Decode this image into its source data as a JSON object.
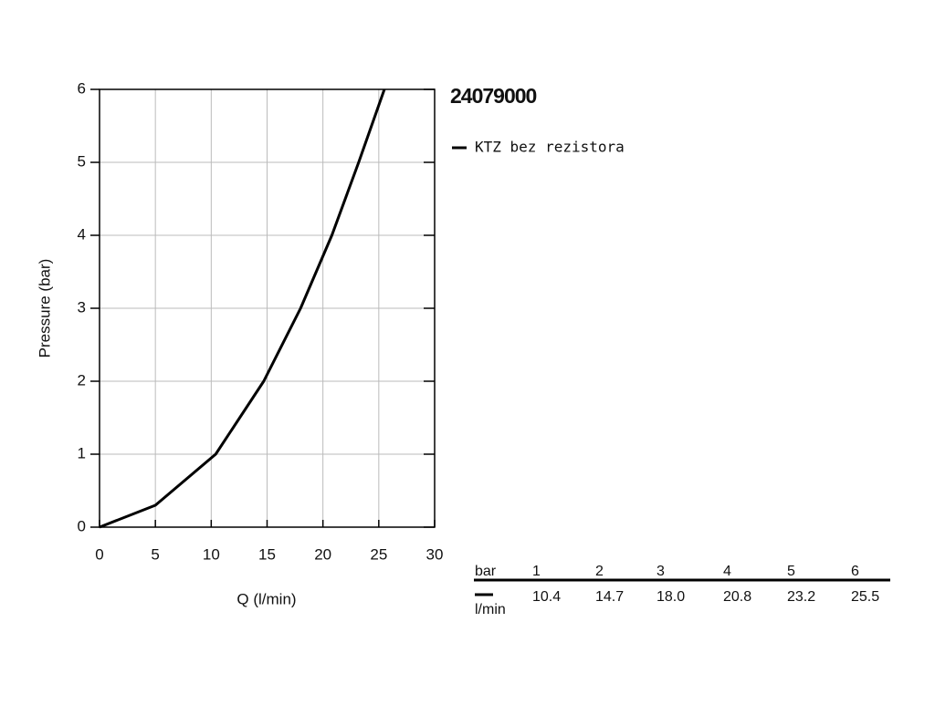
{
  "chart_data": {
    "type": "line",
    "title": "24079000",
    "x_label": "Q (l/min)",
    "y_label": "Pressure (bar)",
    "series": [
      {
        "name": "KTZ bez rezistora",
        "color": "#000000",
        "x": [
          0,
          5,
          10.4,
          14.7,
          18.0,
          20.8,
          23.2,
          25.5
        ],
        "values": [
          0,
          0.3,
          1,
          2,
          3,
          4,
          5,
          6
        ]
      }
    ],
    "xlim": [
      0,
      30
    ],
    "xticks": [
      0,
      5,
      10,
      15,
      20,
      25,
      30
    ],
    "ylim": [
      0,
      6
    ],
    "yticks": [
      0,
      1,
      2,
      3,
      4,
      5,
      6
    ],
    "grid": true
  },
  "table": {
    "header_label": "bar",
    "pressures": [
      1,
      2,
      3,
      4,
      5,
      6
    ],
    "unit_label": "l/min",
    "flows": [
      "10.4",
      "14.7",
      "18.0",
      "20.8",
      "23.2",
      "25.5"
    ]
  }
}
